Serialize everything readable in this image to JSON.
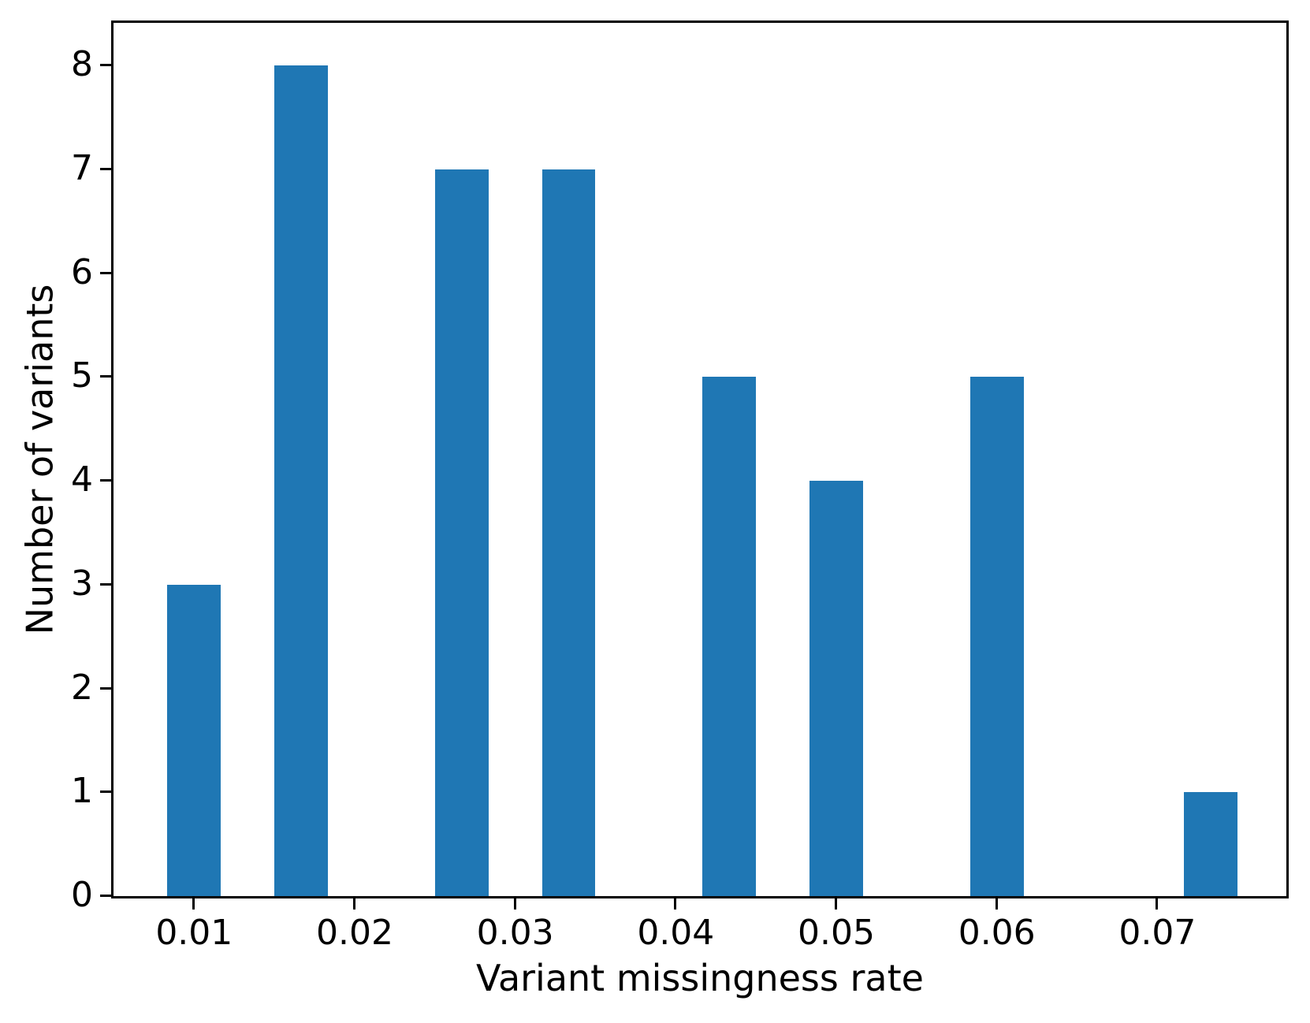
{
  "chart_data": {
    "type": "bar",
    "title": "",
    "xlabel": "Variant missingness rate",
    "ylabel": "Number of variants",
    "x": [
      0.01,
      0.016667,
      0.026667,
      0.033333,
      0.043333,
      0.05,
      0.06,
      0.073333
    ],
    "values": [
      3,
      8,
      7,
      7,
      5,
      4,
      5,
      1
    ],
    "bar_width": 0.003333,
    "xlim": [
      0.00498,
      0.07803
    ],
    "ylim": [
      0,
      8.41
    ],
    "xticks": [
      0.01,
      0.02,
      0.03,
      0.04,
      0.05,
      0.06,
      0.07
    ],
    "xtick_labels": [
      "0.01",
      "0.02",
      "0.03",
      "0.04",
      "0.05",
      "0.06",
      "0.07"
    ],
    "yticks": [
      0,
      1,
      2,
      3,
      4,
      5,
      6,
      7,
      8
    ],
    "ytick_labels": [
      "0",
      "1",
      "2",
      "3",
      "4",
      "5",
      "6",
      "7",
      "8"
    ],
    "bar_color": "#1f77b4",
    "axis_color": "#000000",
    "background_color": "#ffffff",
    "grid": false,
    "legend": null
  }
}
